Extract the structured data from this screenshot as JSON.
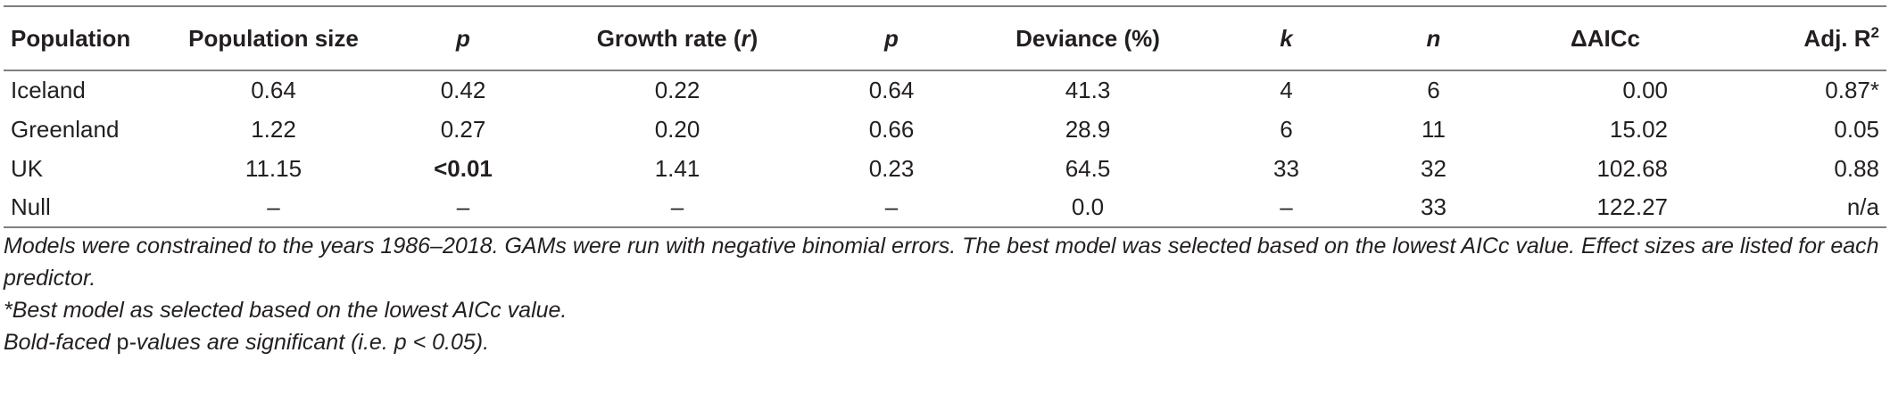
{
  "table": {
    "headers": [
      {
        "text": "Population",
        "italic": false
      },
      {
        "text": "Population size",
        "italic": false
      },
      {
        "text": "p",
        "italic": true
      },
      {
        "text": "Growth rate (",
        "italic": false,
        "tail_italic": "r",
        "tail": ")"
      },
      {
        "text": "p",
        "italic": true
      },
      {
        "text": "Deviance (%)",
        "italic": false
      },
      {
        "text": "k",
        "italic": true
      },
      {
        "text": "n",
        "italic": true
      },
      {
        "text": "ΔAICc",
        "italic": false
      },
      {
        "text": "Adj. R",
        "italic": false,
        "sup": "2"
      }
    ],
    "rows": [
      {
        "population": "Iceland",
        "population_size": "0.64",
        "p1": "0.42",
        "growth_rate": "0.22",
        "p2": "0.64",
        "deviance": "41.3",
        "k": "4",
        "n": "6",
        "delta_aicc": "0.00",
        "adj_r2": "0.87*"
      },
      {
        "population": "Greenland",
        "population_size": "1.22",
        "p1": "0.27",
        "growth_rate": "0.20",
        "p2": "0.66",
        "deviance": "28.9",
        "k": "6",
        "n": "11",
        "delta_aicc": "15.02",
        "adj_r2": "0.05"
      },
      {
        "population": "UK",
        "population_size": "11.15",
        "p1": "<0.01",
        "p1_bold": true,
        "growth_rate": "1.41",
        "p2": "0.23",
        "deviance": "64.5",
        "k": "33",
        "n": "32",
        "delta_aicc": "102.68",
        "adj_r2": "0.88"
      },
      {
        "population": "Null",
        "population_size": "–",
        "p1": "–",
        "growth_rate": "–",
        "p2": "–",
        "deviance": "0.0",
        "k": "–",
        "n": "33",
        "delta_aicc": "122.27",
        "adj_r2": "n/a"
      }
    ]
  },
  "notes": {
    "note1": "Models were constrained to the years 1986–2018. GAMs were run with negative binomial errors. The best model was selected based on the lowest AICc value. Effect sizes are listed for each predictor.",
    "note2": "*Best model as selected based on the lowest AICc value.",
    "note3_a": "Bold-faced ",
    "note3_b": "p",
    "note3_c": "-values are significant (i.e. p < 0.05)."
  }
}
